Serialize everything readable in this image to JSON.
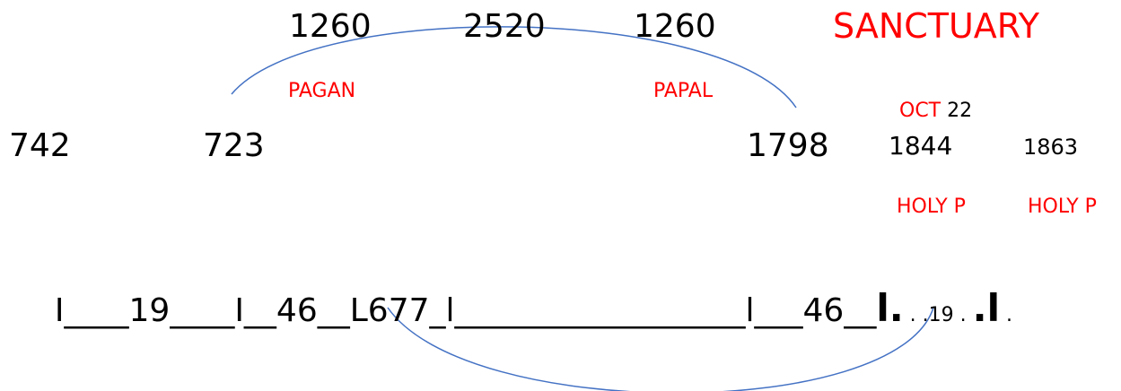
{
  "colors": {
    "text": "#000000",
    "accent": "#ff0000",
    "arc": "#4472c4"
  },
  "top_numbers": [
    "1260",
    "2520",
    "1260"
  ],
  "sanctuary": "SANCTUARY",
  "labels": {
    "pagan": "PAGAN",
    "papal": "PAPAL"
  },
  "oct": {
    "month": "OCT",
    "day": "22"
  },
  "years": [
    "742",
    "723",
    "1798",
    "1844",
    "1863"
  ],
  "holy_p": [
    "HOLY P",
    "HOLY P"
  ],
  "timeline": {
    "seg1": "I____19____I__46__L677_l",
    "seg2": "__________________l___46__",
    "big_l1": "l.",
    "mid": " . .19 . ",
    "big_l2": ".l",
    "end": " ."
  }
}
